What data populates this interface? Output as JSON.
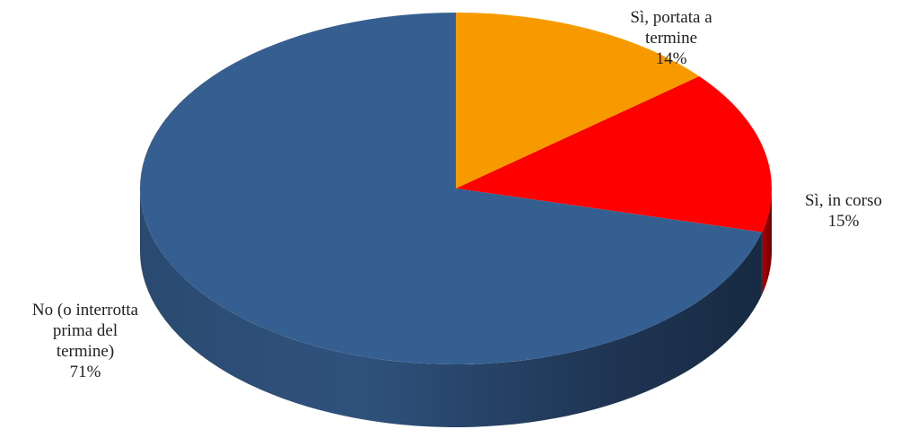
{
  "chart_data": {
    "type": "pie",
    "title": "",
    "three_d": true,
    "legend": "none",
    "slices": [
      {
        "label_lines": [
          "No (o interrotta",
          "prima del",
          "termine)"
        ],
        "percent_label": "71%",
        "value": 71,
        "color": "#365F91"
      },
      {
        "label_lines": [
          "Sì, in corso"
        ],
        "percent_label": "15%",
        "value": 15,
        "color": "#FF0000"
      },
      {
        "label_lines": [
          "Sì, portata a",
          "termine"
        ],
        "percent_label": "14%",
        "value": 14,
        "color": "#F79A00"
      }
    ]
  }
}
